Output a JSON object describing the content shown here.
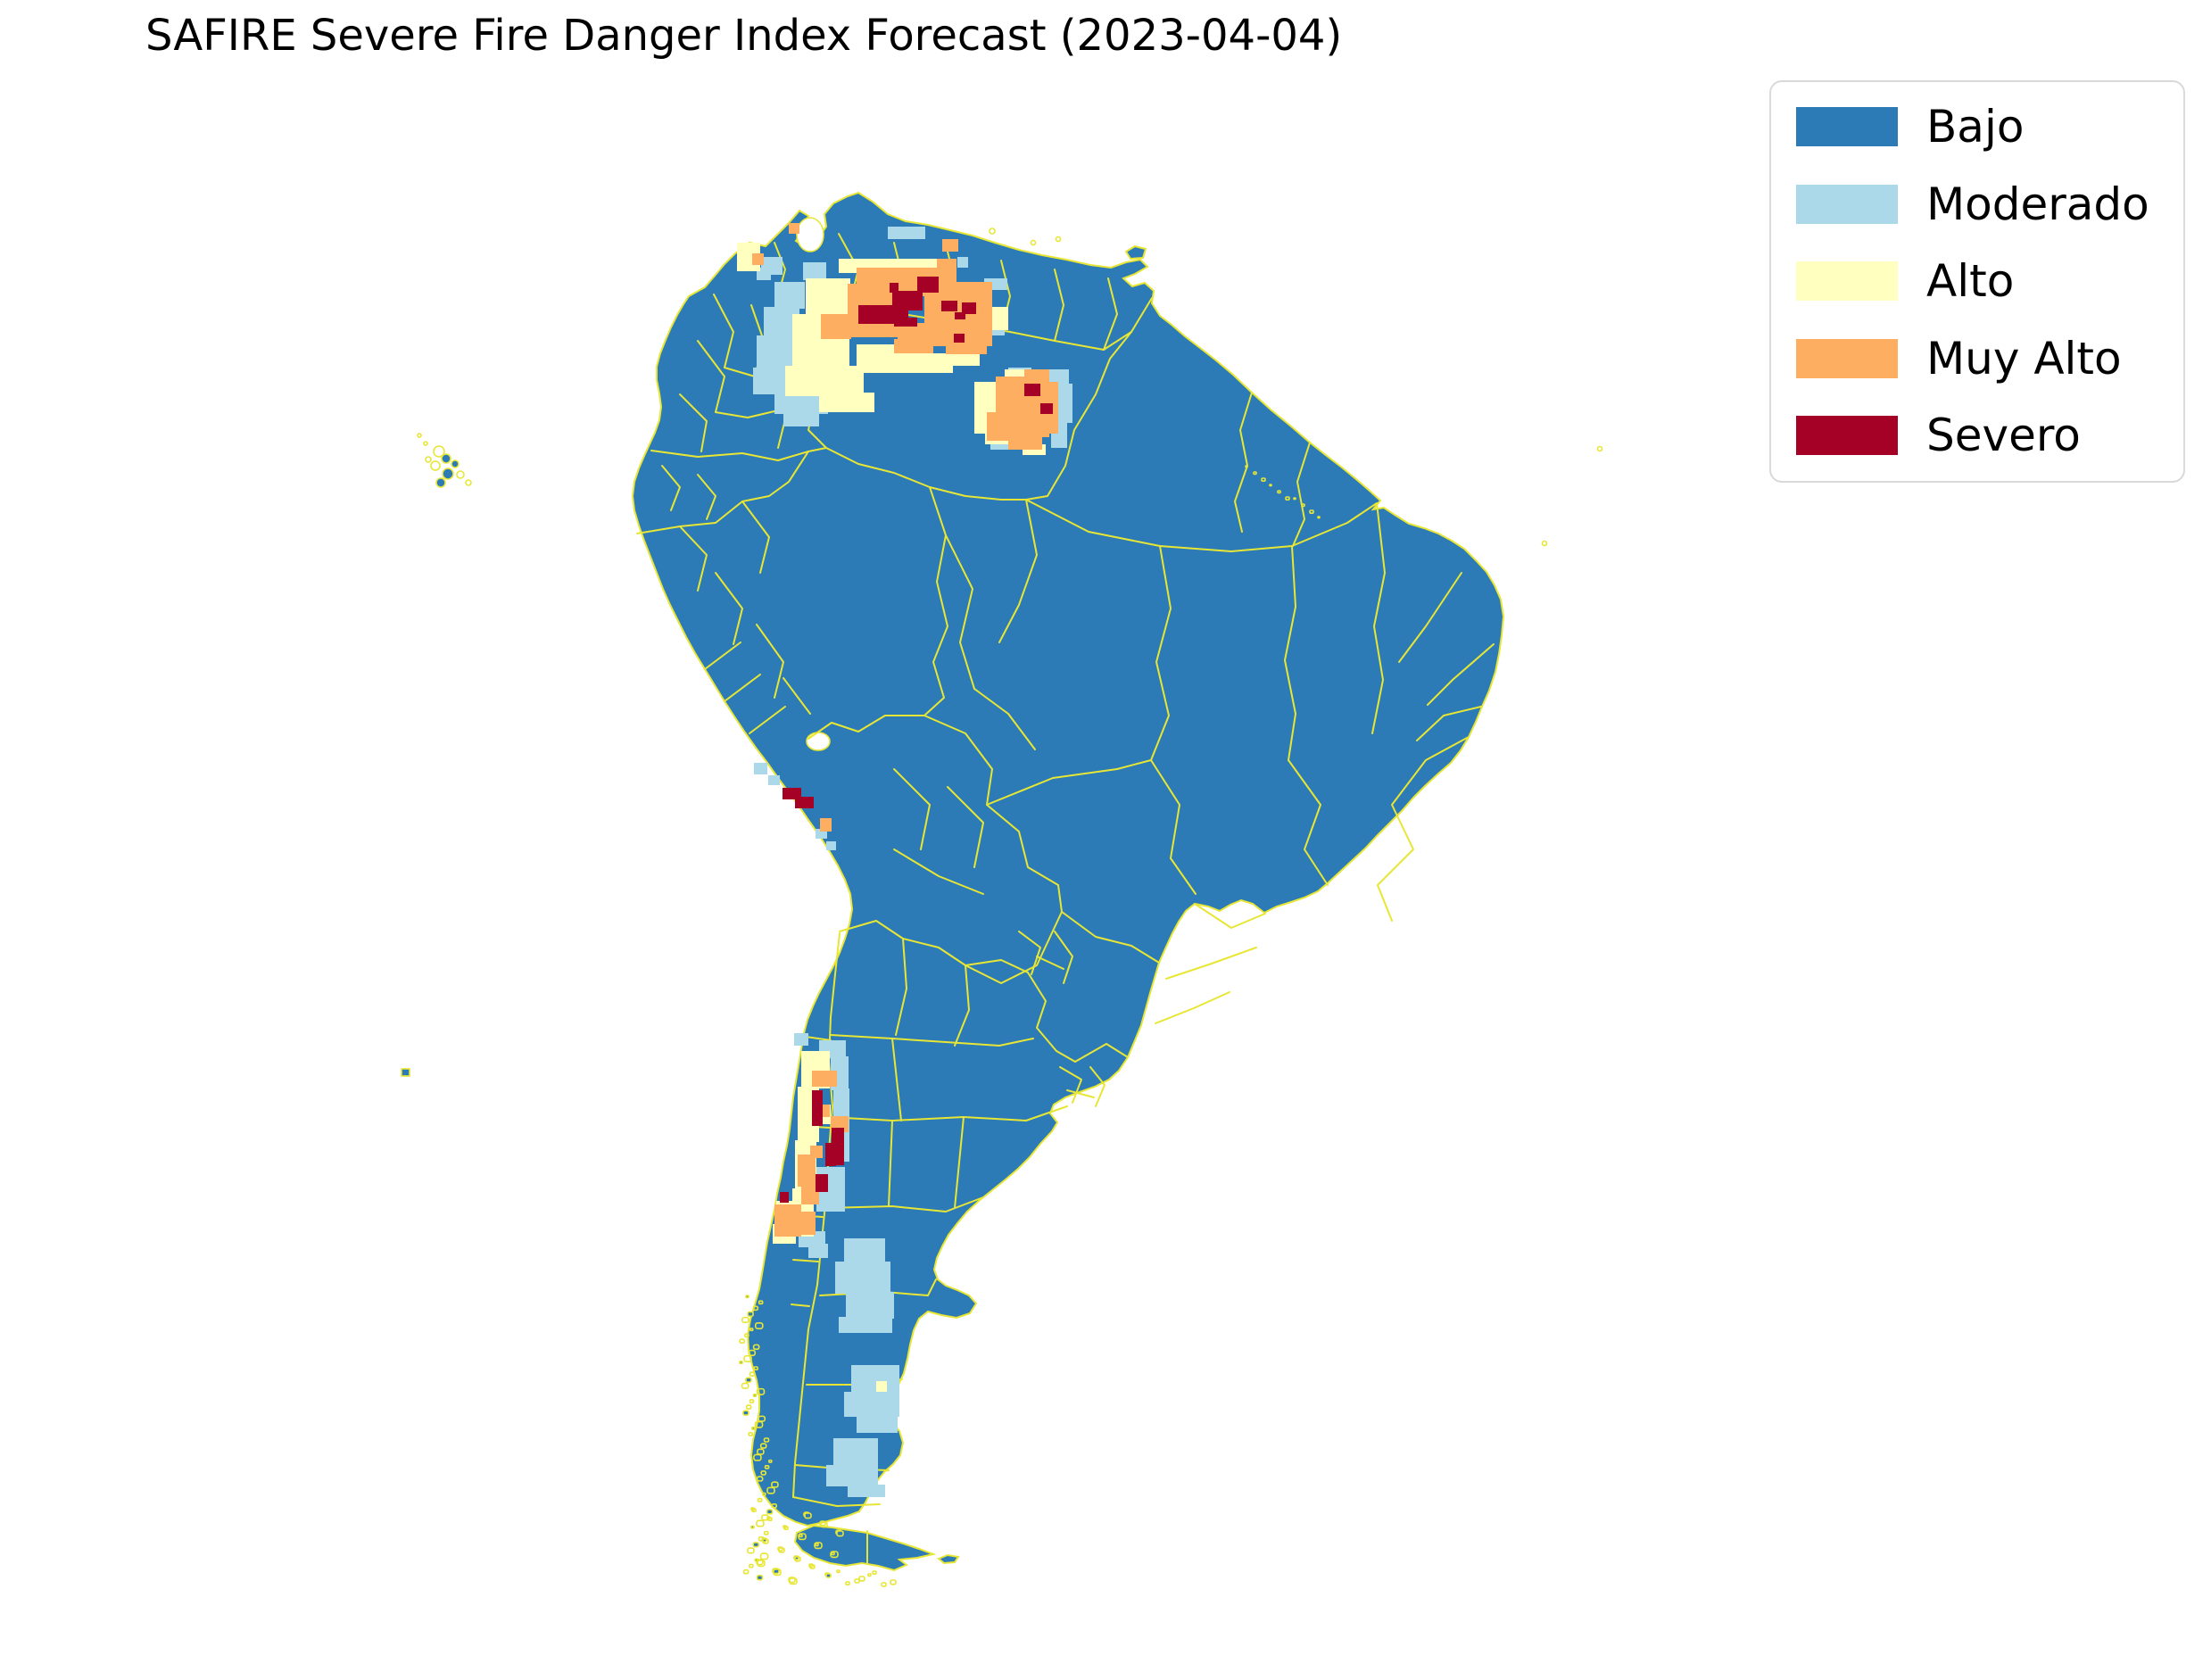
{
  "title": "SAFIRE Severe Fire Danger Index Forecast (2023-04-04)",
  "colors": {
    "background": "#ffffff",
    "ocean": "#ffffff",
    "boundary": "#e8e635",
    "text": "#000000",
    "legend_border": "#d9d9d9"
  },
  "legend": {
    "position": "upper right",
    "items": [
      {
        "label": "Bajo",
        "color": "#2c7bb6"
      },
      {
        "label": "Moderado",
        "color": "#abd9e9"
      },
      {
        "label": "Alto",
        "color": "#ffffbf"
      },
      {
        "label": "Muy Alto",
        "color": "#fdae61"
      },
      {
        "label": "Severo",
        "color": "#a50026"
      }
    ]
  },
  "chart_data": {
    "type": "heatmap",
    "subtype": "choropleth-raster-forecast-map",
    "title": "SAFIRE Severe Fire Danger Index Forecast (2023-04-04)",
    "region": "South America",
    "date": "2023-04-04",
    "classes": [
      "Bajo",
      "Moderado",
      "Alto",
      "Muy Alto",
      "Severo"
    ],
    "base_class": "Bajo",
    "legend_position": "upper right",
    "cell_format": "[class_index, x, y, w, h] in 2478x1883 figure pixels; class_index refers to legend.items",
    "hotspots": [
      {
        "name": "venezuela-llanos",
        "cells": [
          [
            1,
            900,
            294,
            26,
            20
          ],
          [
            1,
            868,
            316,
            34,
            30
          ],
          [
            1,
            856,
            344,
            40,
            34
          ],
          [
            1,
            848,
            376,
            50,
            38
          ],
          [
            1,
            844,
            412,
            62,
            30
          ],
          [
            1,
            868,
            440,
            60,
            24
          ],
          [
            1,
            878,
            462,
            40,
            16
          ],
          [
            1,
            995,
            254,
            42,
            14
          ],
          [
            1,
            958,
            290,
            14,
            12
          ],
          [
            1,
            1073,
            288,
            12,
            12
          ],
          [
            1,
            1103,
            312,
            26,
            13
          ],
          [
            1,
            1112,
            364,
            14,
            12
          ],
          [
            1,
            853,
            288,
            24,
            20
          ],
          [
            2,
            940,
            290,
            110,
            16
          ],
          [
            2,
            903,
            312,
            50,
            44
          ],
          [
            2,
            888,
            352,
            64,
            58
          ],
          [
            2,
            880,
            410,
            88,
            34
          ],
          [
            2,
            918,
            440,
            62,
            22
          ],
          [
            2,
            960,
            386,
            52,
            32
          ],
          [
            2,
            1012,
            396,
            56,
            22
          ],
          [
            2,
            1068,
            392,
            30,
            18
          ],
          [
            2,
            1104,
            344,
            26,
            26
          ],
          [
            2,
            926,
            336,
            20,
            20
          ],
          [
            3,
            960,
            300,
            112,
            18
          ],
          [
            3,
            950,
            318,
            60,
            60
          ],
          [
            3,
            1008,
            318,
            28,
            14
          ],
          [
            3,
            1036,
            316,
            76,
            72
          ],
          [
            3,
            1006,
            362,
            34,
            22
          ],
          [
            3,
            1002,
            380,
            44,
            16
          ],
          [
            3,
            1060,
            384,
            46,
            13
          ],
          [
            3,
            920,
            352,
            34,
            28
          ],
          [
            3,
            1050,
            290,
            22,
            12
          ],
          [
            4,
            1028,
            310,
            24,
            18
          ],
          [
            4,
            1000,
            326,
            34,
            22
          ],
          [
            4,
            962,
            342,
            56,
            21
          ],
          [
            4,
            1002,
            356,
            26,
            10
          ],
          [
            4,
            997,
            317,
            10,
            11
          ],
          [
            4,
            1055,
            337,
            18,
            12
          ],
          [
            4,
            1078,
            339,
            16,
            13
          ],
          [
            4,
            1070,
            350,
            12,
            8
          ],
          [
            4,
            1069,
            374,
            12,
            10
          ]
        ]
      },
      {
        "name": "guyana-rupununi",
        "cells": [
          [
            1,
            1130,
            412,
            26,
            12
          ],
          [
            1,
            1174,
            414,
            24,
            18
          ],
          [
            1,
            1184,
            430,
            18,
            44
          ],
          [
            1,
            1178,
            472,
            18,
            30
          ],
          [
            1,
            1110,
            490,
            30,
            14
          ],
          [
            2,
            1092,
            428,
            30,
            58
          ],
          [
            2,
            1104,
            478,
            30,
            20
          ],
          [
            2,
            1126,
            414,
            24,
            16
          ],
          [
            2,
            1146,
            498,
            26,
            12
          ],
          [
            3,
            1116,
            422,
            60,
            68
          ],
          [
            3,
            1106,
            462,
            44,
            32
          ],
          [
            3,
            1130,
            488,
            38,
            16
          ],
          [
            3,
            1148,
            414,
            28,
            14
          ],
          [
            3,
            1160,
            428,
            26,
            58
          ],
          [
            4,
            1148,
            430,
            18,
            14
          ],
          [
            4,
            1166,
            452,
            14,
            12
          ]
        ]
      },
      {
        "name": "colombia-caribbean-coast",
        "cells": [
          [
            2,
            826,
            272,
            26,
            32
          ],
          [
            1,
            848,
            300,
            16,
            14
          ],
          [
            3,
            843,
            284,
            13,
            13
          ],
          [
            3,
            884,
            250,
            12,
            12
          ]
        ]
      },
      {
        "name": "venezuela-ne-coast",
        "cells": [
          [
            3,
            1056,
            268,
            18,
            14
          ]
        ]
      },
      {
        "name": "peru-south-coast",
        "cells": [
          [
            1,
            845,
            855,
            15,
            13
          ],
          [
            1,
            861,
            869,
            13,
            11
          ],
          [
            1,
            914,
            929,
            13,
            11
          ],
          [
            1,
            926,
            943,
            11,
            10
          ],
          [
            3,
            919,
            917,
            13,
            15
          ],
          [
            4,
            877,
            883,
            21,
            13
          ],
          [
            4,
            891,
            893,
            21,
            13
          ]
        ]
      },
      {
        "name": "central-chile",
        "cells": [
          [
            1,
            918,
            1166,
            30,
            20
          ],
          [
            1,
            931,
            1184,
            20,
            38
          ],
          [
            1,
            934,
            1220,
            18,
            48
          ],
          [
            1,
            915,
            1308,
            32,
            50
          ],
          [
            1,
            895,
            1380,
            30,
            18
          ],
          [
            1,
            890,
            1158,
            16,
            14
          ],
          [
            1,
            906,
            1394,
            22,
            16
          ],
          [
            1,
            938,
            1262,
            14,
            40
          ],
          [
            2,
            898,
            1178,
            32,
            42
          ],
          [
            2,
            894,
            1218,
            24,
            62
          ],
          [
            2,
            891,
            1278,
            24,
            58
          ],
          [
            2,
            888,
            1332,
            24,
            54
          ],
          [
            2,
            870,
            1346,
            22,
            44
          ],
          [
            2,
            866,
            1372,
            26,
            22
          ],
          [
            2,
            903,
            1238,
            28,
            22
          ],
          [
            3,
            910,
            1200,
            28,
            18
          ],
          [
            3,
            931,
            1251,
            20,
            18
          ],
          [
            3,
            894,
            1294,
            20,
            36
          ],
          [
            3,
            898,
            1328,
            20,
            22
          ],
          [
            3,
            868,
            1350,
            30,
            36
          ],
          [
            3,
            888,
            1358,
            26,
            26
          ],
          [
            3,
            916,
            1238,
            14,
            14
          ],
          [
            3,
            908,
            1284,
            14,
            14
          ],
          [
            4,
            910,
            1222,
            12,
            40
          ],
          [
            4,
            932,
            1264,
            14,
            42
          ],
          [
            4,
            925,
            1281,
            12,
            26
          ],
          [
            4,
            914,
            1316,
            14,
            20
          ],
          [
            4,
            874,
            1336,
            10,
            12
          ]
        ]
      },
      {
        "name": "argentina-neuquen",
        "cells": [
          [
            1,
            946,
            1388,
            46,
            28
          ],
          [
            1,
            936,
            1414,
            62,
            36
          ],
          [
            1,
            948,
            1448,
            54,
            30
          ],
          [
            1,
            940,
            1476,
            60,
            18
          ]
        ]
      },
      {
        "name": "argentina-santa-cruz-coast",
        "cells": [
          [
            1,
            954,
            1530,
            54,
            32
          ],
          [
            1,
            946,
            1560,
            62,
            28
          ],
          [
            1,
            960,
            1586,
            46,
            20
          ],
          [
            1,
            934,
            1612,
            50,
            30
          ],
          [
            1,
            926,
            1642,
            58,
            24
          ],
          [
            1,
            950,
            1664,
            42,
            14
          ],
          [
            2,
            982,
            1548,
            12,
            12
          ]
        ]
      }
    ]
  }
}
